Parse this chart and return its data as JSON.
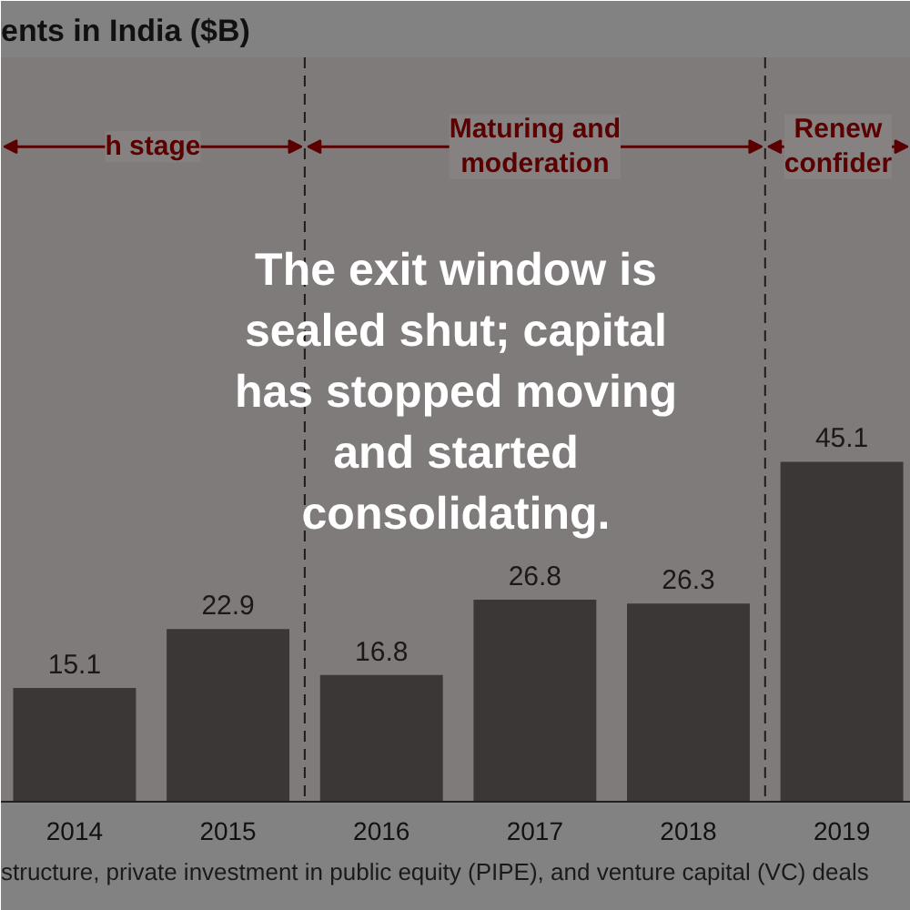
{
  "chart_data": {
    "type": "bar",
    "title": "ents in India ($B)",
    "x": [
      2014,
      2015,
      2016,
      2017,
      2018,
      2019
    ],
    "values": [
      15.1,
      22.9,
      16.8,
      26.8,
      26.3,
      45.1
    ],
    "color": "#3a3a3a",
    "data_labels": true,
    "grid": false,
    "xlim": [
      2013.52,
      2019.45
    ],
    "xticks": [
      2014,
      2015,
      2016,
      2017,
      2018,
      2019
    ],
    "tick_labels": "x",
    "ref_lines": [
      {
        "axis": "x",
        "value": 2015.5,
        "line_style": "dashed",
        "color": "#1e1e1e"
      },
      {
        "axis": "x",
        "value": 2018.5,
        "line_style": "dashed",
        "color": "#1e1e1e"
      }
    ],
    "bands": [
      {
        "axis": "x",
        "from": 2013.52,
        "to": 2015.5,
        "label": "h stage",
        "color": "#5a0000"
      },
      {
        "axis": "x",
        "from": 2015.5,
        "to": 2018.5,
        "label": "Maturing and\nmoderation",
        "color": "#5a0000"
      },
      {
        "axis": "x",
        "from": 2018.5,
        "to": 2019.45,
        "label": "Renew\nconfider",
        "color": "#5a0000"
      }
    ],
    "annotations": [
      "The exit window is\nsealed shut; capital\nhas stopped moving\nand started\nconsolidating.",
      "structure, private investment in public equity (PIPE), and venture capital (VC) deals"
    ]
  }
}
